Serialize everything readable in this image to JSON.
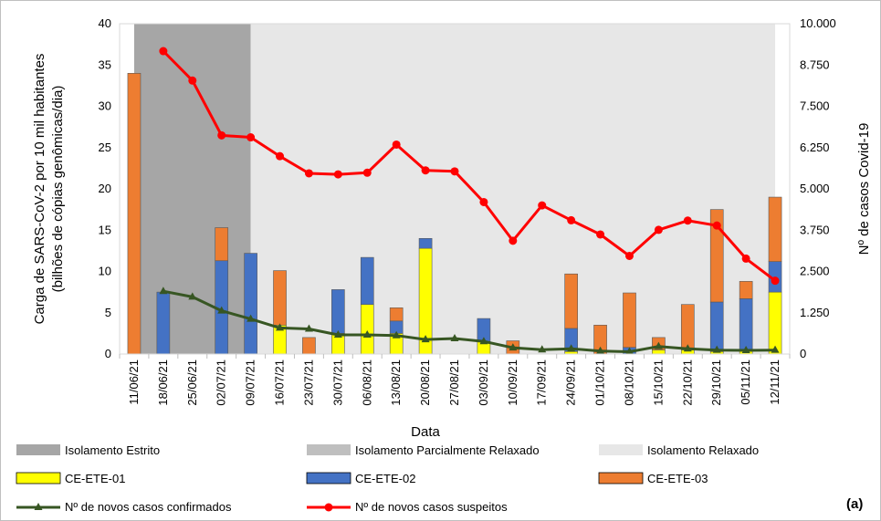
{
  "chart_data": {
    "type": "bar",
    "panel_label": "(a)",
    "xlabel": "Data",
    "ylabel_line1": "Carga de SARS-CoV-2 por 10 mil habitantes",
    "ylabel_line2": "(bilhões de cópias genômicas/dia)",
    "y2label": "Nº de casos Covid-19",
    "ylim": [
      0,
      40
    ],
    "y2lim": [
      0,
      10000
    ],
    "y_ticks": [
      "0",
      "5",
      "10",
      "15",
      "20",
      "25",
      "30",
      "35",
      "40"
    ],
    "y2_ticks": [
      "0",
      "1.250",
      "2.500",
      "3.750",
      "5.000",
      "6.250",
      "7.500",
      "8.750",
      "10.000"
    ],
    "categories": [
      "11/06/21",
      "18/06/21",
      "25/06/21",
      "02/07/21",
      "09/07/21",
      "16/07/21",
      "23/07/21",
      "30/07/21",
      "06/08/21",
      "13/08/21",
      "20/08/21",
      "27/08/21",
      "03/09/21",
      "10/09/21",
      "17/09/21",
      "24/09/21",
      "01/10/21",
      "08/10/21",
      "15/10/21",
      "22/10/21",
      "29/10/21",
      "05/11/21",
      "12/11/21"
    ],
    "periods": [
      {
        "name": "Isolamento Estrito",
        "color": "#a6a6a6",
        "start_index": 0,
        "end_index": 4
      },
      {
        "name": "Isolamento Parcialmente Relaxado",
        "color": "#bfbfbf",
        "start_index": null,
        "end_index": null
      },
      {
        "name": "Isolamento Relaxado",
        "color": "#e7e7e7",
        "start_index": 4,
        "end_index": 22
      }
    ],
    "bar_series": [
      {
        "name": "CE-ETE-01",
        "color": "#ffff00",
        "values": [
          0,
          0,
          0,
          0,
          0,
          3.5,
          0,
          2.5,
          6.0,
          2.5,
          12.8,
          0,
          1.5,
          0,
          0,
          0.3,
          0,
          0,
          0.5,
          0.5,
          0.3,
          0.5,
          7.5
        ]
      },
      {
        "name": "CE-ETE-02",
        "color": "#4472c4",
        "values": [
          0,
          7.5,
          0,
          11.3,
          12.2,
          0,
          0,
          5.3,
          5.7,
          1.5,
          1.2,
          0,
          2.8,
          0,
          0,
          2.8,
          0,
          0.8,
          0,
          0,
          6.0,
          6.2,
          3.7
        ]
      },
      {
        "name": "CE-ETE-03",
        "color": "#ed7d31",
        "values": [
          34.0,
          0,
          0,
          4.0,
          0,
          6.6,
          2.0,
          0,
          0,
          1.6,
          0,
          0,
          0,
          1.6,
          0,
          6.6,
          3.5,
          6.6,
          1.5,
          5.5,
          11.2,
          2.1,
          7.8
        ]
      }
    ],
    "line_series": [
      {
        "name": "Nº de novos casos confirmados",
        "color": "#375623",
        "marker": "triangle",
        "values": [
          null,
          1900,
          1730,
          1310,
          1060,
          790,
          760,
          580,
          580,
          560,
          440,
          470,
          380,
          190,
          130,
          160,
          90,
          70,
          230,
          160,
          120,
          110,
          120
        ]
      },
      {
        "name": "Nº de novos casos suspeitos",
        "color": "#ff0000",
        "marker": "circle",
        "values": [
          null,
          9170,
          8280,
          6620,
          6560,
          5990,
          5470,
          5440,
          5490,
          6340,
          5560,
          5530,
          4600,
          3430,
          4500,
          4050,
          3620,
          2970,
          3760,
          4040,
          3890,
          2890,
          2220
        ]
      }
    ]
  }
}
